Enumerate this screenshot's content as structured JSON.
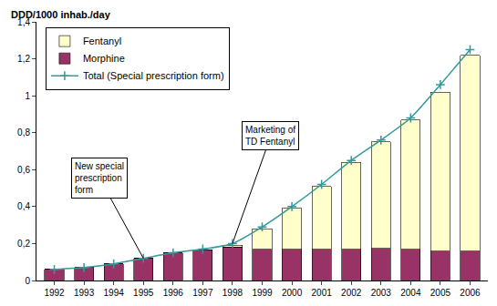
{
  "chart_data": {
    "type": "bar",
    "stacked": true,
    "y_label": "DDD/1000 inhab./day",
    "categories": [
      "1992",
      "1993",
      "1994",
      "1995",
      "1996",
      "1997",
      "1998",
      "1999",
      "2000",
      "2001",
      "2002",
      "2003",
      "2004",
      "2005",
      "2006"
    ],
    "series": [
      {
        "name": "Morphine",
        "type": "bar",
        "color": "#993366",
        "values": [
          0.06,
          0.07,
          0.09,
          0.12,
          0.15,
          0.165,
          0.18,
          0.17,
          0.17,
          0.17,
          0.17,
          0.175,
          0.17,
          0.16,
          0.16
        ]
      },
      {
        "name": "Fentanyl",
        "type": "bar",
        "color": "#ffffcc",
        "values": [
          0,
          0,
          0,
          0,
          0,
          0,
          0.01,
          0.11,
          0.22,
          0.34,
          0.47,
          0.575,
          0.7,
          0.86,
          1.06
        ]
      },
      {
        "name": "Total (Special prescription form)",
        "type": "line",
        "color": "#339999",
        "marker": "cross",
        "values": [
          0.06,
          0.07,
          0.09,
          0.12,
          0.15,
          0.17,
          0.2,
          0.29,
          0.4,
          0.52,
          0.65,
          0.76,
          0.88,
          1.06,
          1.25
        ]
      }
    ],
    "ylim": [
      0,
      1.4
    ],
    "yticks": [
      0,
      {
        "value": 0.2,
        "label": "0,2"
      },
      {
        "value": 0.4,
        "label": "0,4"
      },
      {
        "value": 0.6,
        "label": "0,6"
      },
      {
        "value": 0.8,
        "label": "0,8"
      },
      1,
      {
        "value": 1.2,
        "label": "1,2"
      },
      {
        "value": 1.4,
        "label": "1,4"
      }
    ],
    "grid": false,
    "legend": "top-left",
    "annotations": [
      {
        "lines": [
          "New special",
          "prescription",
          "form"
        ],
        "category": "1995",
        "y": 0.12
      },
      {
        "lines": [
          "Marketing of",
          "TD Fentanyl"
        ],
        "category": "1998",
        "y": 0.2
      }
    ]
  }
}
